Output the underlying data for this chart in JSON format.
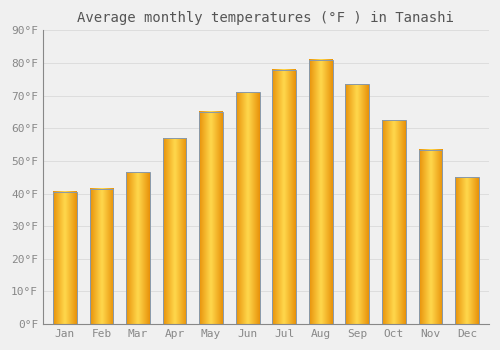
{
  "title": "Average monthly temperatures (°F ) in Tanashi",
  "months": [
    "Jan",
    "Feb",
    "Mar",
    "Apr",
    "May",
    "Jun",
    "Jul",
    "Aug",
    "Sep",
    "Oct",
    "Nov",
    "Dec"
  ],
  "values": [
    40.5,
    41.5,
    46.5,
    57.0,
    65.0,
    71.0,
    78.0,
    81.0,
    73.5,
    62.5,
    53.5,
    45.0
  ],
  "bar_color_center": "#FFD84D",
  "bar_color_edge": "#E8920A",
  "bar_outline_color": "#8899AA",
  "background_color": "#f0f0f0",
  "ylim": [
    0,
    90
  ],
  "yticks": [
    0,
    10,
    20,
    30,
    40,
    50,
    60,
    70,
    80,
    90
  ],
  "ytick_labels": [
    "0°F",
    "10°F",
    "20°F",
    "30°F",
    "40°F",
    "50°F",
    "60°F",
    "70°F",
    "80°F",
    "90°F"
  ],
  "grid_color": "#dddddd",
  "title_fontsize": 10,
  "tick_fontsize": 8,
  "bar_width": 0.65
}
